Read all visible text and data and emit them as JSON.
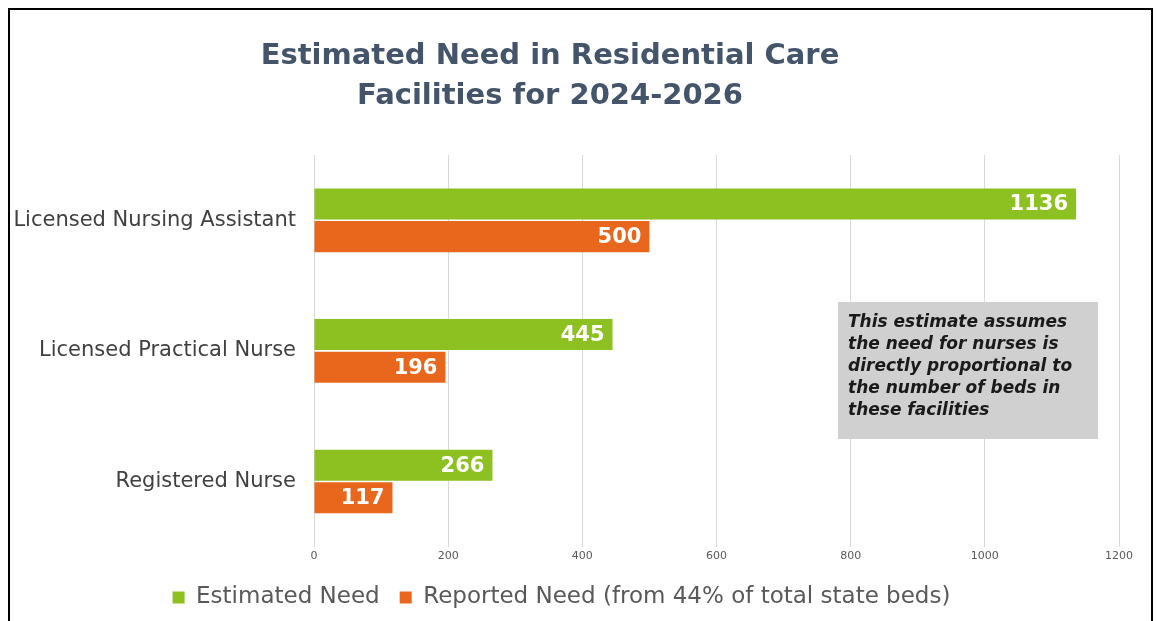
{
  "chart_data": {
    "type": "bar",
    "orientation": "horizontal",
    "title": "Estimated Need in Residential Care Facilities for 2024-2026",
    "categories": [
      "Licensed Nursing Assistant",
      "Licensed Practical Nurse",
      "Registered Nurse"
    ],
    "series": [
      {
        "name": "Estimated Need",
        "color": "#8dc021",
        "values": [
          1136,
          445,
          266
        ]
      },
      {
        "name": "Reported Need (from 44% of total state beds)",
        "color": "#e8671c",
        "values": [
          500,
          196,
          117
        ]
      }
    ],
    "xlim": [
      0,
      1200
    ],
    "xticks": [
      0,
      200,
      400,
      600,
      800,
      1000,
      1200
    ],
    "grid": "x",
    "legend": "bottom",
    "data_labels": true,
    "annotations": [
      "This estimate assumes the need for nurses is directly proportional to the number of beds in these facilities"
    ]
  }
}
